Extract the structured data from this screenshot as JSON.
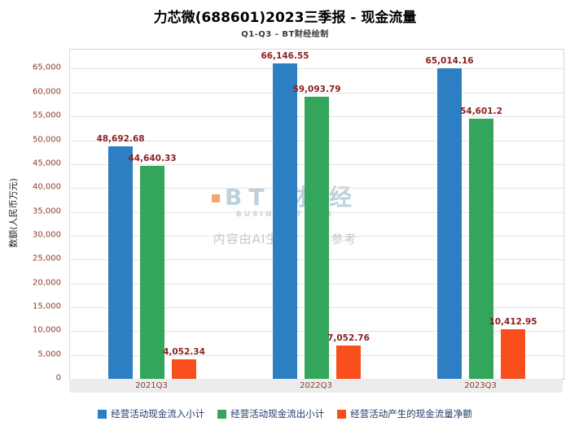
{
  "header": {
    "title": "力芯微(688601)2023三季报 - 现金流量",
    "subtitle": "Q1-Q3 - BT财经绘制"
  },
  "watermark": {
    "brand": "BT 财 经",
    "brand_sub": "BUSINESSTIMES",
    "notice": "内容由AI生成，仅供参考"
  },
  "chart_data": {
    "type": "bar",
    "title": "力芯微(688601)2023三季报 - 现金流量",
    "subtitle": "Q1-Q3 - BT财经绘制",
    "ylabel": "数额(人民币万元)",
    "categories": [
      "2021Q3",
      "2022Q3",
      "2023Q3"
    ],
    "series": [
      {
        "name": "经营活动现金流入小计",
        "color": "#2b7fc2",
        "values": [
          48692.68,
          66146.55,
          65014.16
        ],
        "labels": [
          "48,692.68",
          "66,146.55",
          "65,014.16"
        ]
      },
      {
        "name": "经营活动现金流出小计",
        "color": "#33a65b",
        "values": [
          44640.33,
          59093.79,
          54601.2
        ],
        "labels": [
          "44,640.33",
          "59,093.79",
          "54,601.2"
        ]
      },
      {
        "name": "经营活动产生的现金流量净额",
        "color": "#f84f1d",
        "values": [
          4052.34,
          7052.76,
          10412.95
        ],
        "labels": [
          "4,052.34",
          "7,052.76",
          "10,412.95"
        ]
      }
    ],
    "ylim": [
      0,
      69000
    ],
    "ytick_values": [
      0,
      5000,
      10000,
      15000,
      20000,
      25000,
      30000,
      35000,
      40000,
      45000,
      50000,
      55000,
      60000,
      65000
    ],
    "ytick_labels": [
      "0",
      "5,000",
      "10,000",
      "15,000",
      "20,000",
      "25,000",
      "30,000",
      "35,000",
      "40,000",
      "45,000",
      "50,000",
      "55,000",
      "60,000",
      "65,000"
    ],
    "grid": true,
    "legend_position": "bottom"
  }
}
